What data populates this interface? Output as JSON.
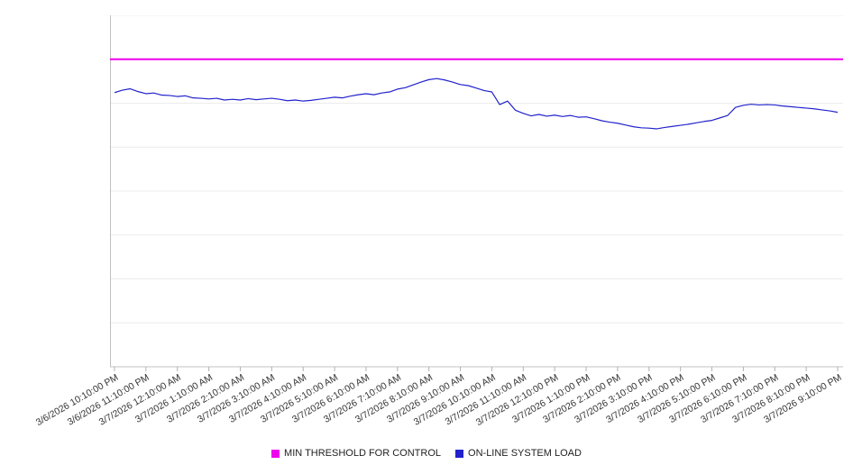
{
  "chart_data": {
    "type": "line",
    "title": "",
    "xlabel": "",
    "ylabel": "",
    "grid": true,
    "legend_position": "bottom",
    "y_axis_tick_labels_visible": false,
    "ylim": [
      0,
      100
    ],
    "y_gridline_step": 12.5,
    "x_tick_labels": [
      "3/6/2026 10:10:00 PM",
      "3/6/2026 11:10:00 PM",
      "3/7/2026 12:10:00 AM",
      "3/7/2026 1:10:00 AM",
      "3/7/2026 2:10:00 AM",
      "3/7/2026 3:10:00 AM",
      "3/7/2026 4:10:00 AM",
      "3/7/2026 5:10:00 AM",
      "3/7/2026 6:10:00 AM",
      "3/7/2026 7:10:00 AM",
      "3/7/2026 8:10:00 AM",
      "3/7/2026 9:10:00 AM",
      "3/7/2026 10:10:00 AM",
      "3/7/2026 11:10:00 AM",
      "3/7/2026 12:10:00 PM",
      "3/7/2026 1:10:00 PM",
      "3/7/2026 2:10:00 PM",
      "3/7/2026 3:10:00 PM",
      "3/7/2026 4:10:00 PM",
      "3/7/2026 5:10:00 PM",
      "3/7/2026 6:10:00 PM",
      "3/7/2026 7:10:00 PM",
      "3/7/2026 8:10:00 PM",
      "3/7/2026 9:10:00 PM"
    ],
    "series": [
      {
        "name": "MIN THRESHOLD FOR CONTROL",
        "color": "#ee00ee",
        "style": "constant",
        "value": 87.5
      },
      {
        "name": "ON-LINE SYSTEM LOAD",
        "color": "#2222cc",
        "style": "line",
        "values": [
          78.0,
          78.7,
          79.1,
          78.3,
          77.7,
          77.9,
          77.3,
          77.2,
          76.9,
          77.1,
          76.5,
          76.4,
          76.2,
          76.4,
          75.9,
          76.1,
          75.9,
          76.3,
          76.0,
          76.2,
          76.4,
          76.1,
          75.7,
          75.9,
          75.6,
          75.8,
          76.1,
          76.4,
          76.7,
          76.5,
          77.0,
          77.4,
          77.7,
          77.4,
          77.9,
          78.2,
          79.0,
          79.4,
          80.2,
          81.0,
          81.7,
          82.0,
          81.6,
          81.0,
          80.3,
          80.0,
          79.3,
          78.6,
          78.2,
          74.6,
          75.6,
          73.0,
          72.1,
          71.4,
          71.8,
          71.3,
          71.6,
          71.2,
          71.5,
          71.0,
          71.1,
          70.6,
          70.0,
          69.6,
          69.3,
          68.8,
          68.3,
          68.0,
          67.9,
          67.7,
          68.1,
          68.4,
          68.7,
          69.0,
          69.4,
          69.8,
          70.1,
          70.8,
          71.5,
          73.8,
          74.4,
          74.7,
          74.5,
          74.6,
          74.5,
          74.2,
          74.0,
          73.8,
          73.6,
          73.4,
          73.1,
          72.8,
          72.4
        ]
      }
    ],
    "axis_color": "#c0c0c0",
    "gridline_color": "#ececec",
    "tick_color": "#b0b0b0"
  }
}
